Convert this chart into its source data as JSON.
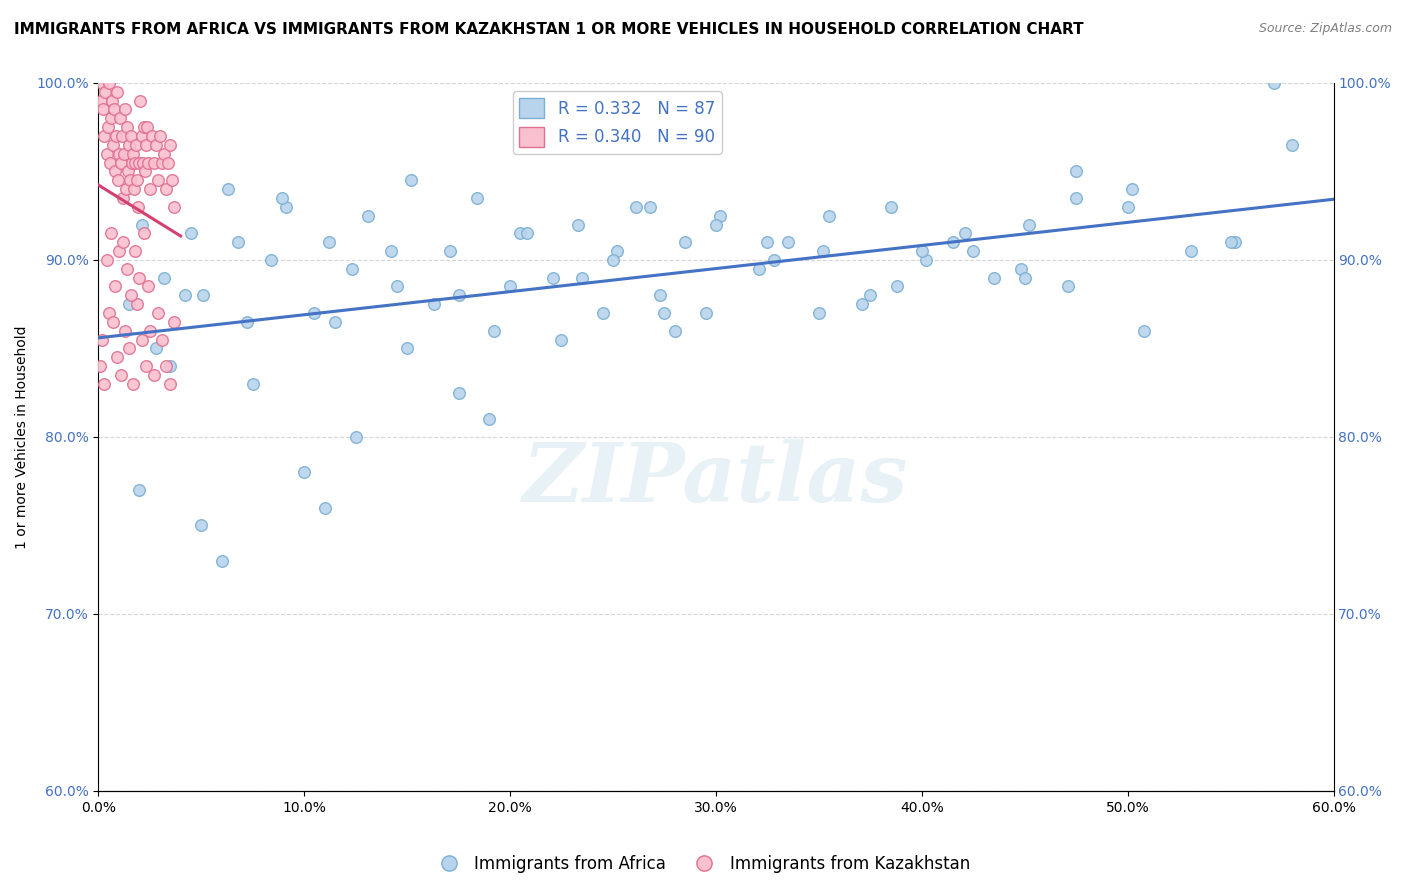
{
  "title": "IMMIGRANTS FROM AFRICA VS IMMIGRANTS FROM KAZAKHSTAN 1 OR MORE VEHICLES IN HOUSEHOLD CORRELATION CHART",
  "source": "Source: ZipAtlas.com",
  "ylabel": "1 or more Vehicles in Household",
  "xlim": [
    0.0,
    60.0
  ],
  "ylim": [
    60.0,
    100.0
  ],
  "xticks": [
    0.0,
    10.0,
    20.0,
    30.0,
    40.0,
    50.0,
    60.0
  ],
  "yticks": [
    60.0,
    70.0,
    80.0,
    90.0,
    100.0
  ],
  "africa_color": "#b8d4ec",
  "africa_edge": "#7bafd4",
  "kazakh_color": "#f9c0cf",
  "kazakh_edge": "#e07090",
  "trend_africa_color": "#4472c4",
  "trend_kazakh_color": "#d44070",
  "R_africa": 0.332,
  "N_africa": 87,
  "R_kazakh": 0.34,
  "N_kazakh": 90,
  "legend_label_africa": "Immigrants from Africa",
  "legend_label_kazakh": "Immigrants from Kazakhstan",
  "watermark": "ZIPatlas",
  "africa_x": [
    1.5,
    2.1,
    3.2,
    4.5,
    5.1,
    6.3,
    7.2,
    8.4,
    9.1,
    10.5,
    11.2,
    12.3,
    13.1,
    14.5,
    15.2,
    16.3,
    17.1,
    18.4,
    19.2,
    20.5,
    22.1,
    23.3,
    24.5,
    25.2,
    26.1,
    27.3,
    28.5,
    30.2,
    32.1,
    33.5,
    35.2,
    37.1,
    38.5,
    40.2,
    42.1,
    43.5,
    45.2,
    47.1,
    50.2,
    53.1,
    55.2,
    57.1,
    2.8,
    4.2,
    6.8,
    8.9,
    11.5,
    14.2,
    17.5,
    20.8,
    23.5,
    26.8,
    29.5,
    32.8,
    35.5,
    38.8,
    41.5,
    44.8,
    47.5,
    50.8,
    3.5,
    7.5,
    12.5,
    17.5,
    22.5,
    27.5,
    32.5,
    37.5,
    42.5,
    47.5,
    5.0,
    10.0,
    15.0,
    20.0,
    25.0,
    30.0,
    35.0,
    40.0,
    45.0,
    50.0,
    55.0,
    58.0,
    2.0,
    6.0,
    11.0,
    19.0,
    28.0
  ],
  "africa_y": [
    87.5,
    92.0,
    89.0,
    91.5,
    88.0,
    94.0,
    86.5,
    90.0,
    93.0,
    87.0,
    91.0,
    89.5,
    92.5,
    88.5,
    94.5,
    87.5,
    90.5,
    93.5,
    86.0,
    91.5,
    89.0,
    92.0,
    87.0,
    90.5,
    93.0,
    88.0,
    91.0,
    92.5,
    89.5,
    91.0,
    90.5,
    87.5,
    93.0,
    90.0,
    91.5,
    89.0,
    92.0,
    88.5,
    94.0,
    90.5,
    91.0,
    100.0,
    85.0,
    88.0,
    91.0,
    93.5,
    86.5,
    90.5,
    88.0,
    91.5,
    89.0,
    93.0,
    87.0,
    90.0,
    92.5,
    88.5,
    91.0,
    89.5,
    93.5,
    86.0,
    84.0,
    83.0,
    80.0,
    82.5,
    85.5,
    87.0,
    91.0,
    88.0,
    90.5,
    95.0,
    75.0,
    78.0,
    85.0,
    88.5,
    90.0,
    92.0,
    87.0,
    90.5,
    89.0,
    93.0,
    91.0,
    96.5,
    77.0,
    73.0,
    76.0,
    81.0,
    86.0
  ],
  "kazakh_x": [
    0.15,
    0.2,
    0.25,
    0.3,
    0.35,
    0.4,
    0.45,
    0.5,
    0.55,
    0.6,
    0.65,
    0.7,
    0.75,
    0.8,
    0.85,
    0.9,
    0.95,
    1.0,
    1.05,
    1.1,
    1.15,
    1.2,
    1.25,
    1.3,
    1.35,
    1.4,
    1.45,
    1.5,
    1.55,
    1.6,
    1.65,
    1.7,
    1.75,
    1.8,
    1.85,
    1.9,
    1.95,
    2.0,
    2.05,
    2.1,
    2.15,
    2.2,
    2.25,
    2.3,
    2.35,
    2.4,
    2.5,
    2.6,
    2.7,
    2.8,
    2.9,
    3.0,
    3.1,
    3.2,
    3.3,
    3.4,
    3.5,
    3.6,
    3.7,
    0.1,
    0.2,
    0.3,
    0.5,
    0.7,
    0.9,
    1.1,
    1.3,
    1.5,
    1.7,
    1.9,
    2.1,
    2.3,
    2.5,
    2.7,
    2.9,
    3.1,
    3.3,
    3.5,
    3.7,
    0.4,
    0.6,
    0.8,
    1.0,
    1.2,
    1.4,
    1.6,
    1.8,
    2.0,
    2.2,
    2.4
  ],
  "kazakh_y": [
    99.0,
    100.0,
    98.5,
    97.0,
    99.5,
    96.0,
    97.5,
    100.0,
    95.5,
    98.0,
    99.0,
    96.5,
    98.5,
    95.0,
    97.0,
    99.5,
    94.5,
    96.0,
    98.0,
    95.5,
    97.0,
    93.5,
    96.0,
    98.5,
    94.0,
    97.5,
    95.0,
    96.5,
    94.5,
    97.0,
    95.5,
    96.0,
    94.0,
    95.5,
    96.5,
    94.5,
    93.0,
    95.5,
    99.0,
    97.0,
    95.5,
    97.5,
    95.0,
    96.5,
    97.5,
    95.5,
    94.0,
    97.0,
    95.5,
    96.5,
    94.5,
    97.0,
    95.5,
    96.0,
    94.0,
    95.5,
    96.5,
    94.5,
    93.0,
    84.0,
    85.5,
    83.0,
    87.0,
    86.5,
    84.5,
    83.5,
    86.0,
    85.0,
    83.0,
    87.5,
    85.5,
    84.0,
    86.0,
    83.5,
    87.0,
    85.5,
    84.0,
    83.0,
    86.5,
    90.0,
    91.5,
    88.5,
    90.5,
    91.0,
    89.5,
    88.0,
    90.5,
    89.0,
    91.5,
    88.5
  ],
  "title_fontsize": 11,
  "axis_fontsize": 10,
  "tick_fontsize": 10,
  "legend_fontsize": 12,
  "marker_size": 70,
  "marker_linewidth": 1.0,
  "background_color": "#ffffff",
  "grid_color": "#cccccc",
  "grid_style": "--",
  "grid_alpha": 0.8
}
